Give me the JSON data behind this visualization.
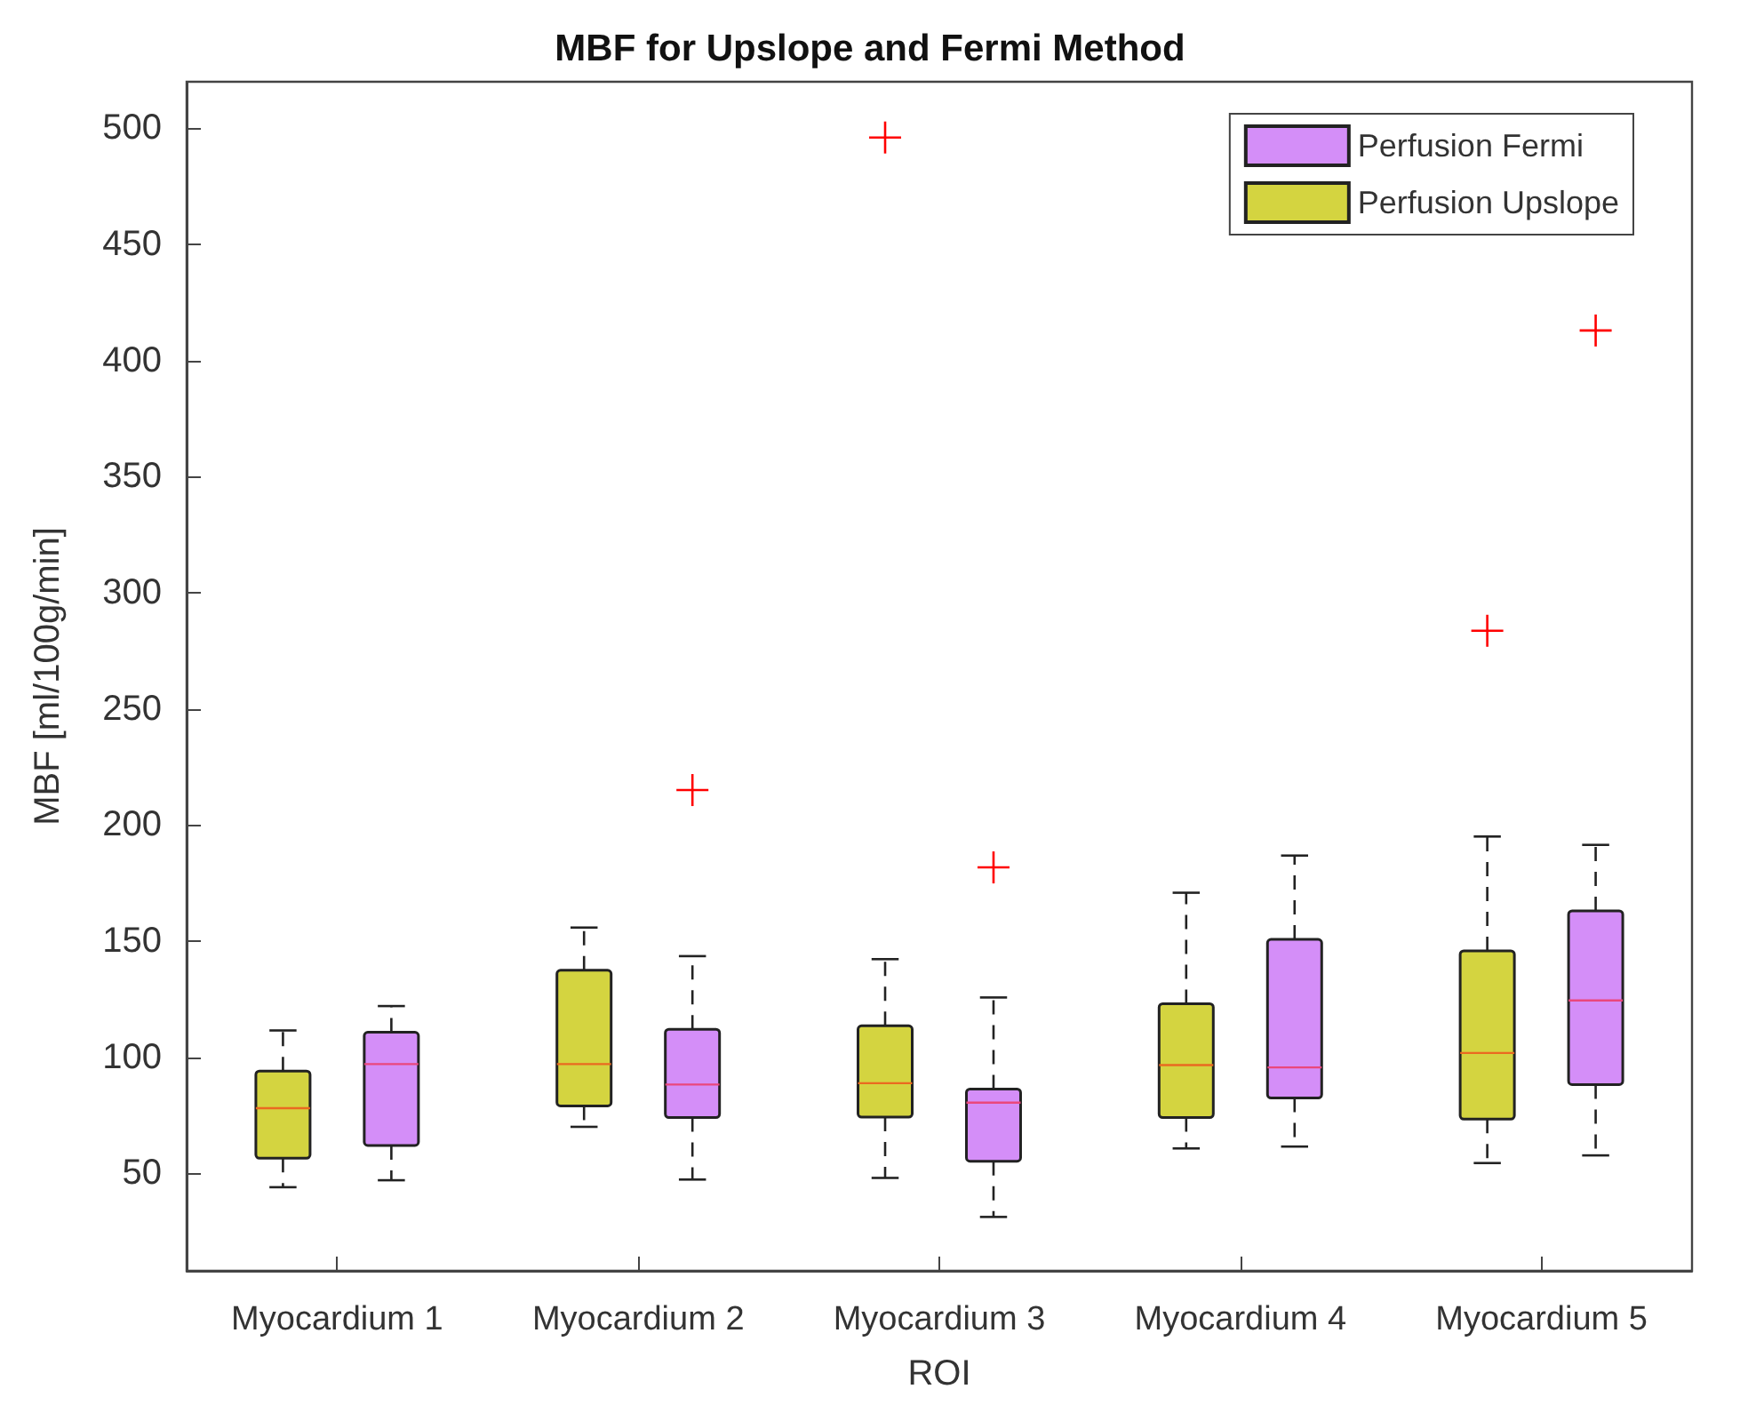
{
  "chart_data": {
    "type": "box",
    "title": "MBF for Upslope and Fermi Method",
    "xlabel": "ROI",
    "ylabel": "MBF [ml/100g/min]",
    "categories": [
      "Myocardium 1",
      "Myocardium 2",
      "Myocardium 3",
      "Myocardium 4",
      "Myocardium 5"
    ],
    "ylim": [
      8,
      520
    ],
    "yticks": [
      50,
      100,
      150,
      200,
      250,
      300,
      350,
      400,
      450,
      500
    ],
    "legend": "top right",
    "grid": false,
    "line_style": "dashed",
    "marker": "cross",
    "series": [
      {
        "name": "Perfusion Upslope",
        "color": "#d4d440",
        "boxes": [
          {
            "low": 44,
            "q1": 56.5,
            "median": 78,
            "q3": 94,
            "high": 111.5
          },
          {
            "low": 70,
            "q1": 79,
            "median": 97,
            "q3": 137.4,
            "high": 155.8
          },
          {
            "low": 48,
            "q1": 74.2,
            "median": 88.8,
            "q3": 113.5,
            "high": 142.2,
            "outliers": [
              496
            ]
          },
          {
            "low": 60.7,
            "q1": 74,
            "median": 96.6,
            "q3": 123,
            "high": 170.8
          },
          {
            "low": 54.4,
            "q1": 73.3,
            "median": 101.8,
            "q3": 145.8,
            "high": 195,
            "outliers": [
              283.6
            ]
          }
        ]
      },
      {
        "name": "Perfusion Fermi",
        "color": "#d48ef8",
        "boxes": [
          {
            "low": 47,
            "q1": 62,
            "median": 97,
            "q3": 110.7,
            "high": 122
          },
          {
            "low": 47.3,
            "q1": 74,
            "median": 88.2,
            "q3": 112,
            "high": 143.5,
            "outliers": [
              215
            ]
          },
          {
            "low": 31.2,
            "q1": 55.2,
            "median": 80.4,
            "q3": 86.3,
            "high": 125.7,
            "outliers": [
              181.7
            ]
          },
          {
            "low": 61.5,
            "q1": 82.4,
            "median": 95.6,
            "q3": 150.7,
            "high": 186.8
          },
          {
            "low": 57.7,
            "q1": 88.2,
            "median": 124.4,
            "q3": 163,
            "high": 191.4,
            "outliers": [
              412.9
            ]
          }
        ]
      }
    ]
  }
}
